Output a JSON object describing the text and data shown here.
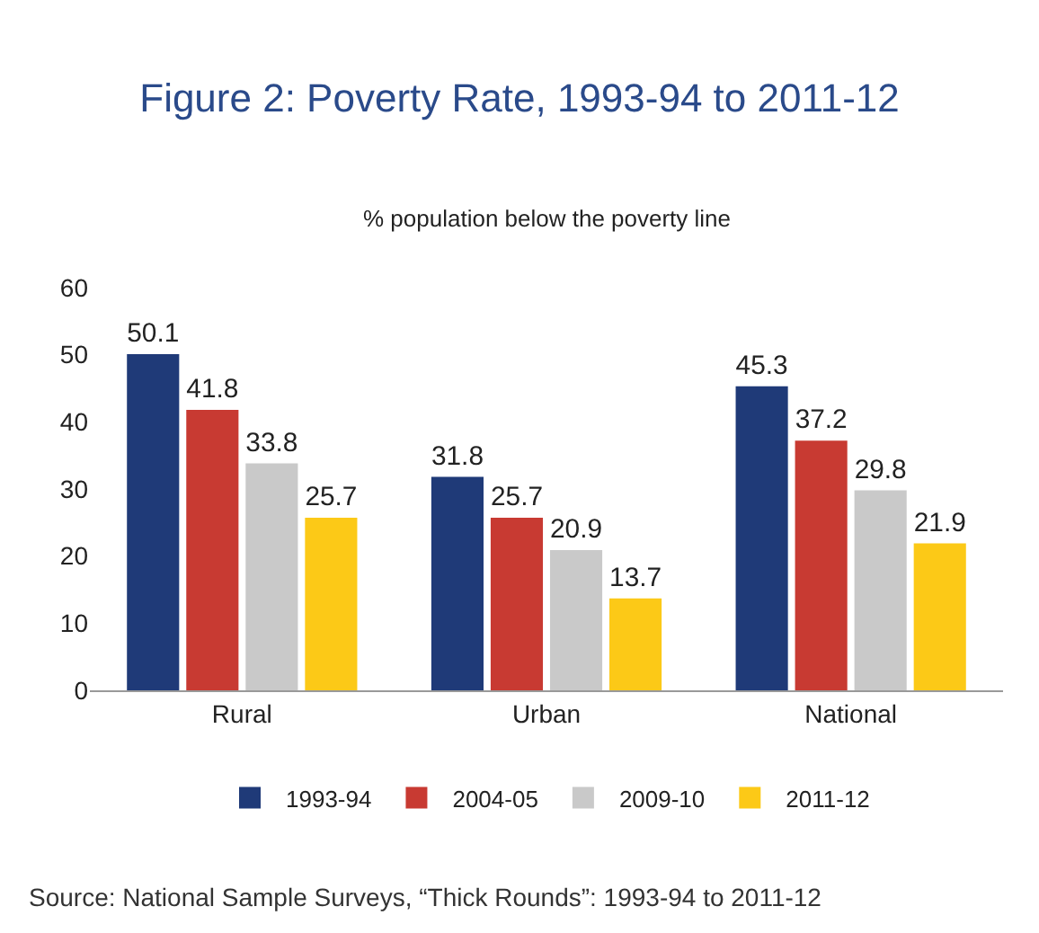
{
  "chart_data": {
    "type": "bar",
    "title": "Figure 2: Poverty Rate, 1993-94 to 2011-12",
    "subtitle": "% population below the poverty line",
    "categories": [
      "Rural",
      "Urban",
      "National"
    ],
    "series": [
      {
        "name": "1993-94",
        "color": "#1f3a78",
        "values": [
          50.1,
          31.8,
          45.3
        ]
      },
      {
        "name": "2004-05",
        "color": "#c83a32",
        "values": [
          41.8,
          25.7,
          37.2
        ]
      },
      {
        "name": "2009-10",
        "color": "#c9c9c9",
        "values": [
          33.8,
          20.9,
          29.8
        ]
      },
      {
        "name": "2011-12",
        "color": "#fcc917",
        "values": [
          25.7,
          13.7,
          21.9
        ]
      }
    ],
    "ylim": [
      0,
      60
    ],
    "yticks": [
      0,
      10,
      20,
      30,
      40,
      50,
      60
    ],
    "legend": "bottom",
    "data_labels": true,
    "annotations": [
      "Source: National Sample Surveys, “Thick Rounds”: 1993-94 to 2011-12"
    ]
  }
}
